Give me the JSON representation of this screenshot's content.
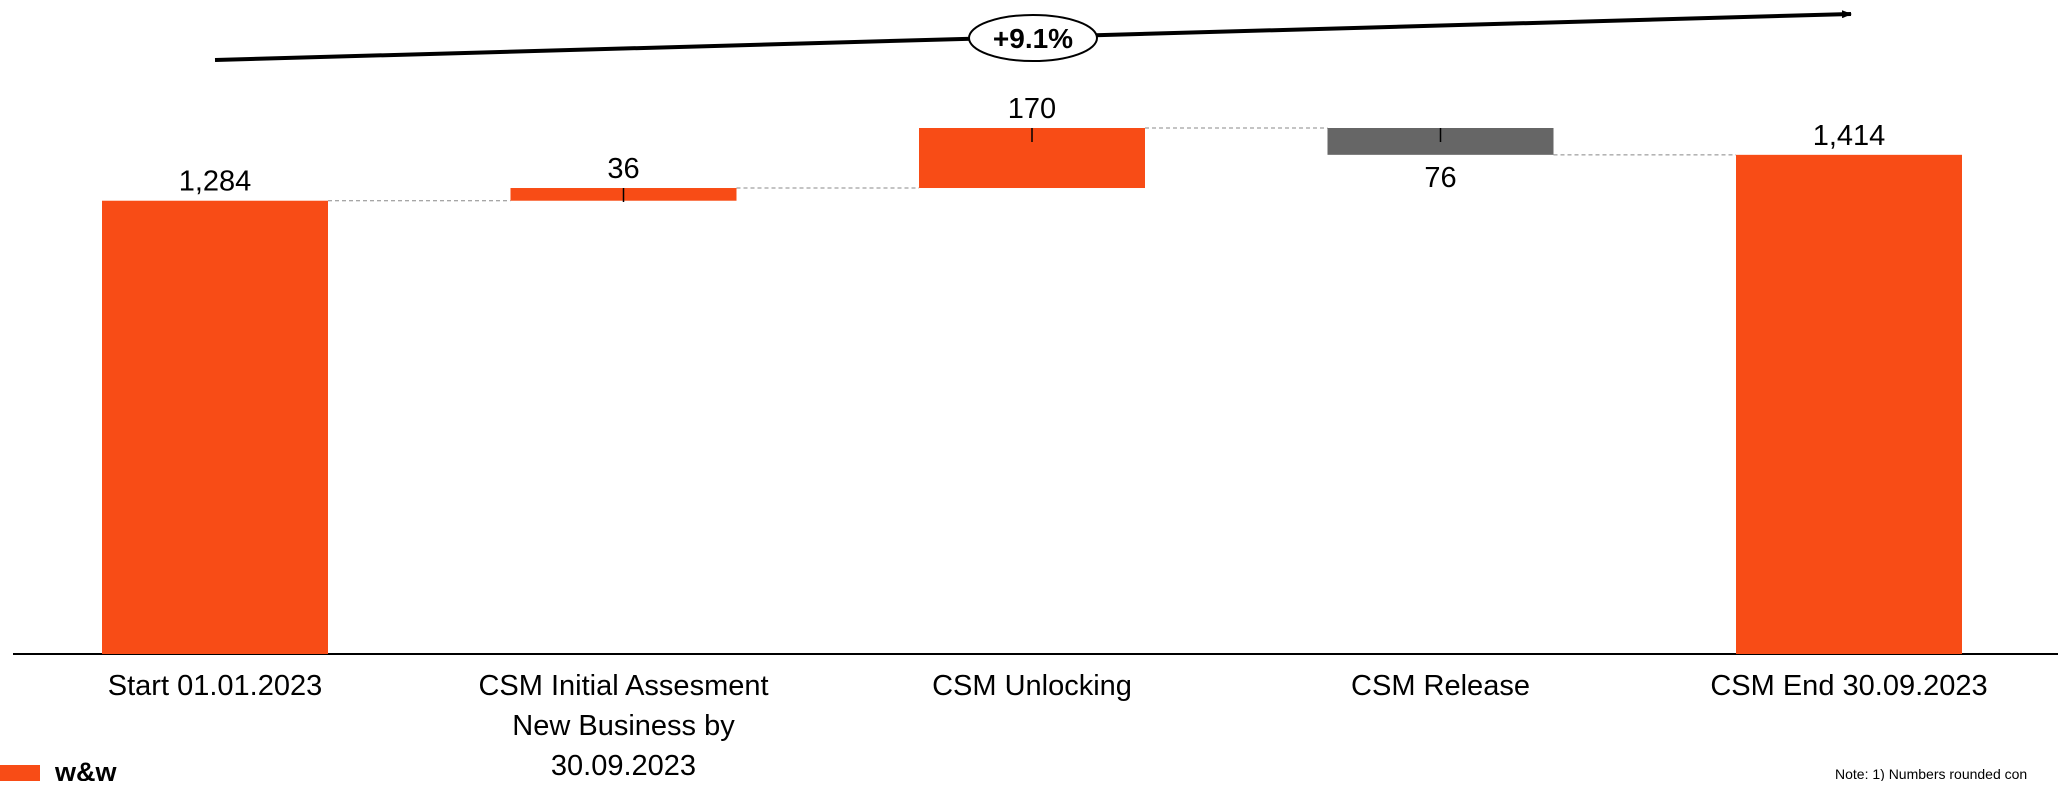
{
  "chart_data": {
    "type": "waterfall",
    "categories": [
      "Start 01.01.2023",
      "CSM Initial Assesment New Business by 30.09.2023",
      "CSM Unlocking",
      "CSM Release",
      "CSM End 30.09.2023"
    ],
    "values": [
      1284,
      36,
      170,
      -76,
      1414
    ],
    "value_labels": [
      "1,284",
      "36",
      "170",
      "76",
      "1,414"
    ],
    "colors": [
      "#f84c16",
      "#f84c16",
      "#f84c16",
      "#666666",
      "#f84c16"
    ],
    "annotation": "+9.1%",
    "note": "Note: 1) Numbers rounded con",
    "logo": "w&w"
  }
}
